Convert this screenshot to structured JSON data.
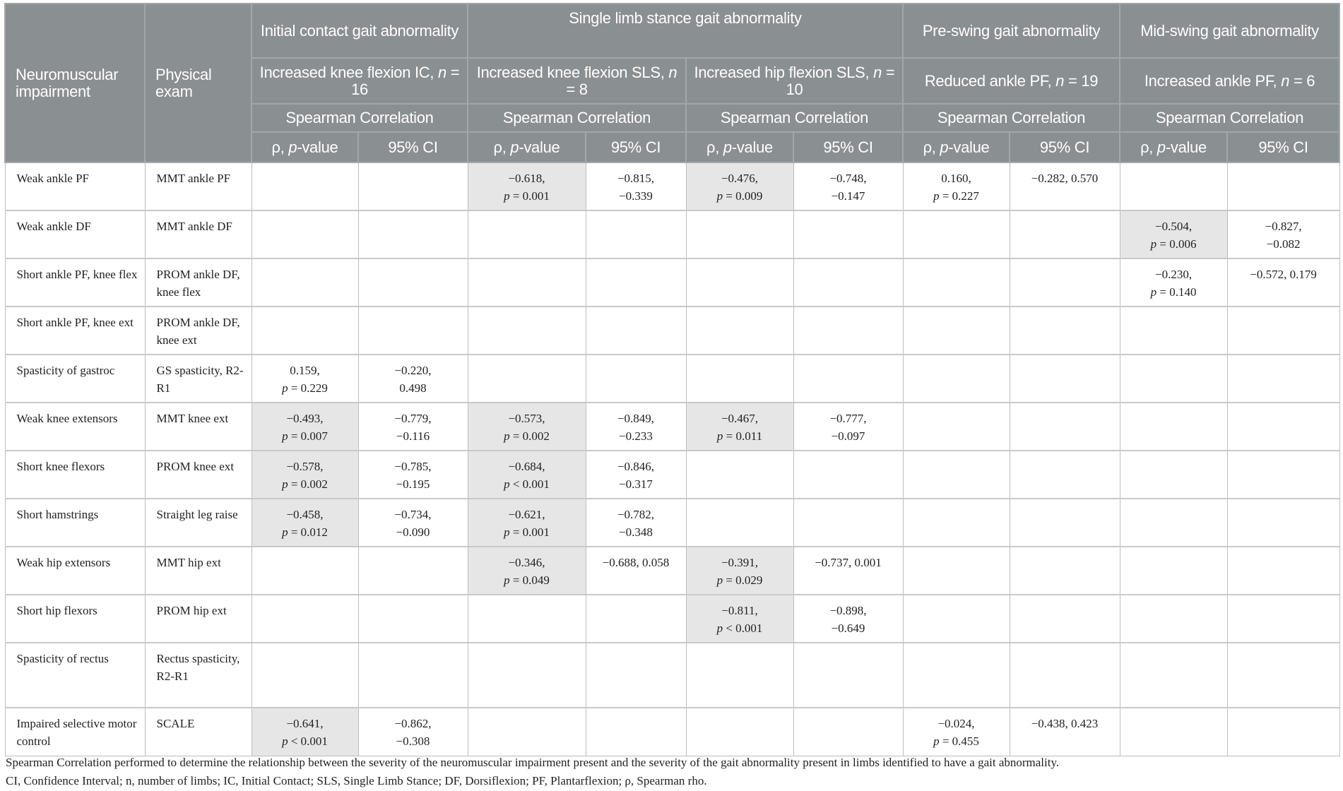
{
  "header": {
    "col_impairment": "Neuromuscular impairment",
    "col_exam": "Physical exam",
    "groups": [
      "Initial contact gait abnormality",
      "Single limb stance gait abnormality",
      "Pre-swing gait abnormality",
      "Mid-swing gait abnormality"
    ],
    "subgroups": [
      {
        "label": "Increased knee flexion IC,",
        "n": "= 16"
      },
      {
        "label": "Increased knee flexion SLS,",
        "n": "= 8"
      },
      {
        "label": "Increased hip flexion SLS,",
        "n": "= 10"
      },
      {
        "label": "Reduced ankle PF,",
        "n": "= 19"
      },
      {
        "label": "Increased ankle PF,",
        "n": "= 6"
      }
    ],
    "n_symbol": "n",
    "method": "Spearman Correlation",
    "rho_label": "ρ, ",
    "p_label": "p",
    "p_suffix": "-value",
    "ci_label": "95% CI"
  },
  "highlight_color": "#e6e6e6",
  "header_color": "#8a8f91",
  "rows": [
    {
      "impairment": "Weak ankle PF",
      "exam": "MMT ankle PF",
      "cells": [
        null,
        {
          "rho": "−0.618,",
          "p": "= 0.001",
          "ci": [
            "−0.815,",
            "−0.339"
          ],
          "shaded": true
        },
        {
          "rho": "−0.476,",
          "p": "= 0.009",
          "ci": [
            "−0.748,",
            "−0.147"
          ],
          "shaded": true
        },
        {
          "rho": "0.160,",
          "p": "= 0.227",
          "ci": [
            "−0.282, 0.570"
          ],
          "shaded": false
        },
        null
      ]
    },
    {
      "impairment": "Weak ankle DF",
      "exam": "MMT ankle DF",
      "cells": [
        null,
        null,
        null,
        null,
        {
          "rho": "−0.504,",
          "p": "= 0.006",
          "ci": [
            "−0.827,",
            "−0.082"
          ],
          "shaded": true
        }
      ]
    },
    {
      "impairment": "Short ankle PF, knee flex",
      "exam": "PROM ankle DF, knee flex",
      "cells": [
        null,
        null,
        null,
        null,
        {
          "rho": "−0.230,",
          "p": "= 0.140",
          "ci": [
            "−0.572, 0.179"
          ],
          "shaded": false
        }
      ]
    },
    {
      "impairment": "Short ankle PF, knee ext",
      "exam": "PROM ankle DF, knee ext",
      "cells": [
        null,
        null,
        null,
        null,
        null
      ]
    },
    {
      "impairment": "Spasticity of gastroc",
      "exam": "GS spasticity, R2-R1",
      "cells": [
        {
          "rho": "0.159,",
          "p": "= 0.229",
          "ci": [
            "−0.220,",
            "0.498"
          ],
          "shaded": false
        },
        null,
        null,
        null,
        null
      ]
    },
    {
      "impairment": "Weak knee extensors",
      "exam": "MMT knee ext",
      "cells": [
        {
          "rho": "−0.493,",
          "p": "= 0.007",
          "ci": [
            "−0.779,",
            "−0.116"
          ],
          "shaded": true
        },
        {
          "rho": "−0.573,",
          "p": "= 0.002",
          "ci": [
            "−0.849,",
            "−0.233"
          ],
          "shaded": true
        },
        {
          "rho": "−0.467,",
          "p": "= 0.011",
          "ci": [
            "−0.777,",
            "−0.097"
          ],
          "shaded": true
        },
        null,
        null
      ]
    },
    {
      "impairment": "Short knee flexors",
      "exam": "PROM knee ext",
      "cells": [
        {
          "rho": "−0.578,",
          "p": "= 0.002",
          "ci": [
            "−0.785,",
            "−0.195"
          ],
          "shaded": true
        },
        {
          "rho": "−0.684,",
          "p": "< 0.001",
          "ci": [
            "−0.846,",
            "−0.317"
          ],
          "shaded": true
        },
        null,
        null,
        null
      ]
    },
    {
      "impairment": "Short hamstrings",
      "exam": "Straight leg raise",
      "cells": [
        {
          "rho": "−0.458,",
          "p": "= 0.012",
          "ci": [
            "−0.734,",
            "−0.090"
          ],
          "shaded": true
        },
        {
          "rho": "−0.621,",
          "p": "= 0.001",
          "ci": [
            "−0.782,",
            "−0.348"
          ],
          "shaded": true
        },
        null,
        null,
        null
      ]
    },
    {
      "impairment": "Weak hip extensors",
      "exam": "MMT hip ext",
      "cells": [
        null,
        {
          "rho": "−0.346,",
          "p": "= 0.049",
          "ci": [
            "−0.688, 0.058"
          ],
          "shaded": true
        },
        {
          "rho": "−0.391,",
          "p": "= 0.029",
          "ci": [
            "−0.737, 0.001"
          ],
          "shaded": true
        },
        null,
        null
      ]
    },
    {
      "impairment": "Short hip flexors",
      "exam": "PROM hip ext",
      "cells": [
        null,
        null,
        {
          "rho": "−0.811,",
          "p": "< 0.001",
          "ci": [
            "−0.898,",
            "−0.649"
          ],
          "shaded": true
        },
        null,
        null
      ]
    },
    {
      "impairment": "Spasticity of rectus",
      "exam": "Rectus spasticity, R2-R1",
      "cells": [
        null,
        null,
        null,
        null,
        null
      ]
    },
    {
      "impairment": "Impaired selective motor control",
      "exam": "SCALE",
      "cells": [
        {
          "rho": "−0.641,",
          "p": "< 0.001",
          "ci": [
            "−0.862,",
            "−0.308"
          ],
          "shaded": true
        },
        null,
        null,
        {
          "rho": "−0.024,",
          "p": "= 0.455",
          "ci": [
            "−0.438, 0.423"
          ],
          "shaded": false
        },
        null
      ]
    }
  ],
  "footnotes": [
    "Spearman Correlation performed to determine the relationship between the severity of the neuromuscular impairment present and the severity of the gait abnormality present in limbs identified to have a gait abnormality.",
    "CI, Confidence Interval; n, number of limbs; IC, Initial Contact; SLS, Single Limb Stance; DF, Dorsiflexion; PF, Plantarflexion; ρ, Spearman rho."
  ]
}
